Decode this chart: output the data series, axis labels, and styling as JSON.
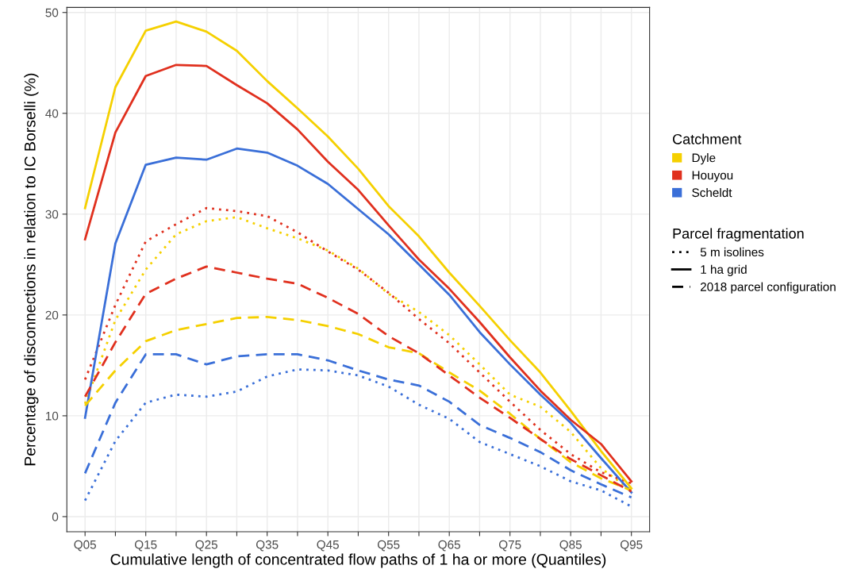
{
  "chart_data": {
    "type": "line",
    "xlabel": "Cumulative length of concentrated flow paths of 1 ha or more (Quantiles)",
    "ylabel": "Percentage of disconnections in relation to IC Borselli (%)",
    "categories": [
      "Q05",
      null,
      "Q15",
      null,
      "Q25",
      null,
      "Q35",
      null,
      "Q45",
      null,
      "Q55",
      null,
      "Q65",
      null,
      "Q75",
      null,
      "Q85",
      null,
      "Q95"
    ],
    "ylim": [
      -1.5,
      50.5
    ],
    "yticks": [
      0,
      10,
      20,
      30,
      40,
      50
    ],
    "grid": true,
    "legend_title": [
      "Catchment",
      "Parcel fragmentation"
    ],
    "annotations": [
      "Dyle",
      "Houyou",
      "Scheldt",
      "5 m isolines",
      "1 ha grid",
      "2018 parcel configuration"
    ],
    "series": [
      {
        "line_style": "dotted",
        "color": "#f5d000",
        "values": [
          11.2,
          19.5,
          24.5,
          28.0,
          29.3,
          29.7,
          28.6,
          27.6,
          26.4,
          24.6,
          22.1,
          20.3,
          18.0,
          15.1,
          12.1,
          10.9,
          8.4,
          4.8,
          2.6
        ]
      },
      {
        "line_style": "dotted",
        "color": "#e0301e",
        "values": [
          13.6,
          21.0,
          27.3,
          29.0,
          30.6,
          30.3,
          29.8,
          28.2,
          26.3,
          24.5,
          22.2,
          19.6,
          17.2,
          14.3,
          11.4,
          8.6,
          6.2,
          4.4,
          3.3
        ]
      },
      {
        "line_style": "dotted",
        "color": "#3a6fd8",
        "values": [
          1.6,
          7.5,
          11.3,
          12.1,
          11.9,
          12.4,
          13.9,
          14.6,
          14.5,
          14.0,
          12.9,
          11.1,
          9.7,
          7.4,
          6.2,
          5.0,
          3.5,
          2.6,
          1.0
        ]
      },
      {
        "line_style": "solid",
        "color": "#f5d000",
        "values": [
          30.6,
          42.6,
          48.2,
          49.1,
          48.1,
          46.2,
          43.2,
          40.5,
          37.7,
          34.5,
          30.8,
          27.8,
          24.2,
          20.9,
          17.5,
          14.3,
          10.5,
          6.5,
          2.8
        ]
      },
      {
        "line_style": "solid",
        "color": "#e0301e",
        "values": [
          27.5,
          38.1,
          43.7,
          44.8,
          44.7,
          42.8,
          41.0,
          38.4,
          35.2,
          32.4,
          28.9,
          25.5,
          22.6,
          19.3,
          15.8,
          12.5,
          9.6,
          7.2,
          3.5
        ]
      },
      {
        "line_style": "solid",
        "color": "#3a6fd8",
        "values": [
          9.8,
          27.1,
          34.9,
          35.6,
          35.4,
          36.5,
          36.1,
          34.8,
          33.0,
          30.5,
          28.0,
          25.0,
          22.0,
          18.3,
          15.1,
          12.1,
          9.3,
          5.8,
          2.4
        ]
      },
      {
        "line_style": "dashed",
        "color": "#f5d000",
        "values": [
          11.0,
          14.5,
          17.4,
          18.5,
          19.1,
          19.7,
          19.8,
          19.5,
          18.9,
          18.1,
          16.8,
          16.2,
          14.3,
          12.5,
          10.2,
          7.7,
          5.4,
          3.8,
          2.6
        ]
      },
      {
        "line_style": "dashed",
        "color": "#e0301e",
        "values": [
          11.9,
          17.3,
          22.1,
          23.6,
          24.8,
          24.2,
          23.6,
          23.1,
          21.7,
          20.1,
          17.9,
          16.2,
          14.0,
          11.8,
          9.8,
          7.7,
          5.7,
          4.1,
          2.5
        ]
      },
      {
        "line_style": "dashed",
        "color": "#3a6fd8",
        "values": [
          4.3,
          11.3,
          16.1,
          16.1,
          15.1,
          15.9,
          16.1,
          16.1,
          15.5,
          14.5,
          13.6,
          13.0,
          11.4,
          9.1,
          7.8,
          6.4,
          4.6,
          3.2,
          1.9
        ]
      }
    ]
  }
}
